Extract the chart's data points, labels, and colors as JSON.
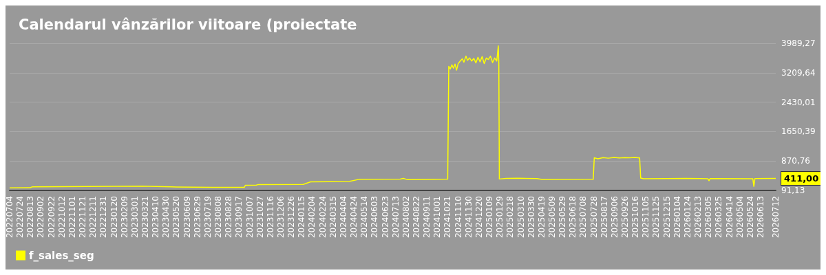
{
  "chart_data": {
    "type": "line",
    "title": "Calendarul vânzărilor viitoare (proiectate",
    "x": [
      "2022-07-04",
      "2022-08-12",
      "2022-08-16",
      "2023-03-15",
      "2023-05-10",
      "2023-07-28",
      "2023-09-27",
      "2023-09-29",
      "2023-10-20",
      "2023-10-24",
      "2024-01-18",
      "2024-02-01",
      "2024-04-15",
      "2024-05-04",
      "2024-07-22",
      "2024-07-28",
      "2024-08-04",
      "2024-10-21",
      "2024-10-23",
      "2024-10-26",
      "2024-10-29",
      "2024-11-01",
      "2024-11-04",
      "2024-11-07",
      "2024-11-10",
      "2024-11-14",
      "2024-11-18",
      "2024-11-21",
      "2024-11-25",
      "2024-11-28",
      "2024-12-02",
      "2024-12-06",
      "2024-12-10",
      "2024-12-14",
      "2024-12-18",
      "2024-12-22",
      "2024-12-26",
      "2024-12-30",
      "2025-01-03",
      "2025-01-07",
      "2025-01-11",
      "2025-01-15",
      "2025-01-19",
      "2025-01-23",
      "2025-01-26",
      "2025-01-27",
      "2025-01-28",
      "2025-02-10",
      "2025-03-05",
      "2025-04-10",
      "2025-04-20",
      "2025-07-27",
      "2025-07-29",
      "2025-08-05",
      "2025-08-15",
      "2025-08-25",
      "2025-09-05",
      "2025-09-15",
      "2025-09-25",
      "2025-10-05",
      "2025-10-15",
      "2025-10-24",
      "2025-10-26",
      "2025-11-01",
      "2025-12-15",
      "2026-01-20",
      "2026-03-04",
      "2026-03-06",
      "2026-03-08",
      "2026-05-29",
      "2026-05-31",
      "2026-06-02",
      "2026-07-12"
    ],
    "series": [
      {
        "name": "f_sales_seg",
        "color": "#ffff00",
        "values": [
          160,
          162,
          185,
          205,
          185,
          172,
          175,
          228,
          232,
          248,
          250,
          320,
          330,
          385,
          390,
          411,
          380,
          390,
          3380,
          3310,
          3420,
          3330,
          3440,
          3280,
          3450,
          3520,
          3580,
          3490,
          3650,
          3540,
          3600,
          3520,
          3590,
          3470,
          3620,
          3500,
          3640,
          3450,
          3600,
          3560,
          3650,
          3480,
          3600,
          3520,
          3920,
          3450,
          394,
          410,
          415,
          405,
          381,
          385,
          957,
          930,
          960,
          945,
          965,
          950,
          960,
          955,
          965,
          950,
          420,
          400,
          405,
          410,
          400,
          350,
          405,
          400,
          199,
          405,
          411
        ]
      }
    ],
    "xlim": [
      "2022-07-04",
      "2026-07-12"
    ],
    "xticks": [
      {
        "value": "2022-07-04",
        "label": "20220704"
      },
      {
        "value": "2022-07-24",
        "label": "20220724"
      },
      {
        "value": "2022-08-13",
        "label": "20220813"
      },
      {
        "value": "2022-09-02",
        "label": "20220902"
      },
      {
        "value": "2022-09-22",
        "label": "20220922"
      },
      {
        "value": "2022-10-12",
        "label": "20221012"
      },
      {
        "value": "2022-11-01",
        "label": "20221101"
      },
      {
        "value": "2022-11-21",
        "label": "20221121"
      },
      {
        "value": "2022-12-11",
        "label": "20221211"
      },
      {
        "value": "2022-12-31",
        "label": "20221231"
      },
      {
        "value": "2023-01-20",
        "label": "20230120"
      },
      {
        "value": "2023-02-09",
        "label": "20230209"
      },
      {
        "value": "2023-03-01",
        "label": "20230301"
      },
      {
        "value": "2023-03-21",
        "label": "20230321"
      },
      {
        "value": "2023-04-10",
        "label": "20230410"
      },
      {
        "value": "2023-04-30",
        "label": "20230430"
      },
      {
        "value": "2023-05-20",
        "label": "20230520"
      },
      {
        "value": "2023-06-09",
        "label": "20230609"
      },
      {
        "value": "2023-06-29",
        "label": "20230629"
      },
      {
        "value": "2023-07-19",
        "label": "20230719"
      },
      {
        "value": "2023-08-08",
        "label": "20230808"
      },
      {
        "value": "2023-08-28",
        "label": "20230828"
      },
      {
        "value": "2023-09-17",
        "label": "20230917"
      },
      {
        "value": "2023-10-07",
        "label": "20231007"
      },
      {
        "value": "2023-10-27",
        "label": "20231027"
      },
      {
        "value": "2023-11-16",
        "label": "20231116"
      },
      {
        "value": "2023-12-06",
        "label": "20231206"
      },
      {
        "value": "2023-12-26",
        "label": "20231226"
      },
      {
        "value": "2024-01-15",
        "label": "20240115"
      },
      {
        "value": "2024-02-04",
        "label": "20240204"
      },
      {
        "value": "2024-02-24",
        "label": "20240224"
      },
      {
        "value": "2024-03-15",
        "label": "20240315"
      },
      {
        "value": "2024-04-04",
        "label": "20240404"
      },
      {
        "value": "2024-04-24",
        "label": "20240424"
      },
      {
        "value": "2024-05-14",
        "label": "20240514"
      },
      {
        "value": "2024-06-03",
        "label": "20240603"
      },
      {
        "value": "2024-06-23",
        "label": "20240623"
      },
      {
        "value": "2024-07-13",
        "label": "20240713"
      },
      {
        "value": "2024-08-02",
        "label": "20240802"
      },
      {
        "value": "2024-08-22",
        "label": "20240822"
      },
      {
        "value": "2024-09-11",
        "label": "20240911"
      },
      {
        "value": "2024-10-01",
        "label": "20241001"
      },
      {
        "value": "2024-10-21",
        "label": "20241021"
      },
      {
        "value": "2024-11-10",
        "label": "20241110"
      },
      {
        "value": "2024-11-30",
        "label": "20241130"
      },
      {
        "value": "2024-12-20",
        "label": "20241220"
      },
      {
        "value": "2025-01-09",
        "label": "20250109"
      },
      {
        "value": "2025-01-29",
        "label": "20250129"
      },
      {
        "value": "2025-02-18",
        "label": "20250218"
      },
      {
        "value": "2025-03-10",
        "label": "20250310"
      },
      {
        "value": "2025-03-30",
        "label": "20250330"
      },
      {
        "value": "2025-04-19",
        "label": "20250419"
      },
      {
        "value": "2025-05-09",
        "label": "20250509"
      },
      {
        "value": "2025-05-29",
        "label": "20250529"
      },
      {
        "value": "2025-06-18",
        "label": "20250618"
      },
      {
        "value": "2025-07-08",
        "label": "20250708"
      },
      {
        "value": "2025-07-28",
        "label": "20250728"
      },
      {
        "value": "2025-08-17",
        "label": "20250817"
      },
      {
        "value": "2025-09-06",
        "label": "20250906"
      },
      {
        "value": "2025-09-26",
        "label": "20250926"
      },
      {
        "value": "2025-10-16",
        "label": "20251016"
      },
      {
        "value": "2025-11-05",
        "label": "20251105"
      },
      {
        "value": "2025-11-25",
        "label": "20251125"
      },
      {
        "value": "2025-12-15",
        "label": "20251215"
      },
      {
        "value": "2026-01-04",
        "label": "20260104"
      },
      {
        "value": "2026-01-24",
        "label": "20260124"
      },
      {
        "value": "2026-02-13",
        "label": "20260213"
      },
      {
        "value": "2026-03-05",
        "label": "20260305"
      },
      {
        "value": "2026-03-25",
        "label": "20260325"
      },
      {
        "value": "2026-04-14",
        "label": "20260414"
      },
      {
        "value": "2026-05-04",
        "label": "20260504"
      },
      {
        "value": "2026-05-24",
        "label": "20260524"
      },
      {
        "value": "2026-06-13",
        "label": "20260613"
      },
      {
        "value": "2026-07-12",
        "label": "20260712"
      }
    ],
    "ylim": [
      91.13,
      3989.27
    ],
    "yticks": [
      {
        "value": 91.13,
        "label": "91,13"
      },
      {
        "value": 870.76,
        "label": "870,76"
      },
      {
        "value": 1650.39,
        "label": "1650,39"
      },
      {
        "value": 2430.01,
        "label": "2430,01"
      },
      {
        "value": 3209.64,
        "label": "3209,64"
      },
      {
        "value": 3989.27,
        "label": "3989,27"
      }
    ],
    "annotations": [
      {
        "text": "411,00",
        "x": "2026-07-12",
        "y": 411
      }
    ],
    "grid": "y",
    "legend": "bottom left",
    "marker": "none",
    "line_style": "solid"
  }
}
